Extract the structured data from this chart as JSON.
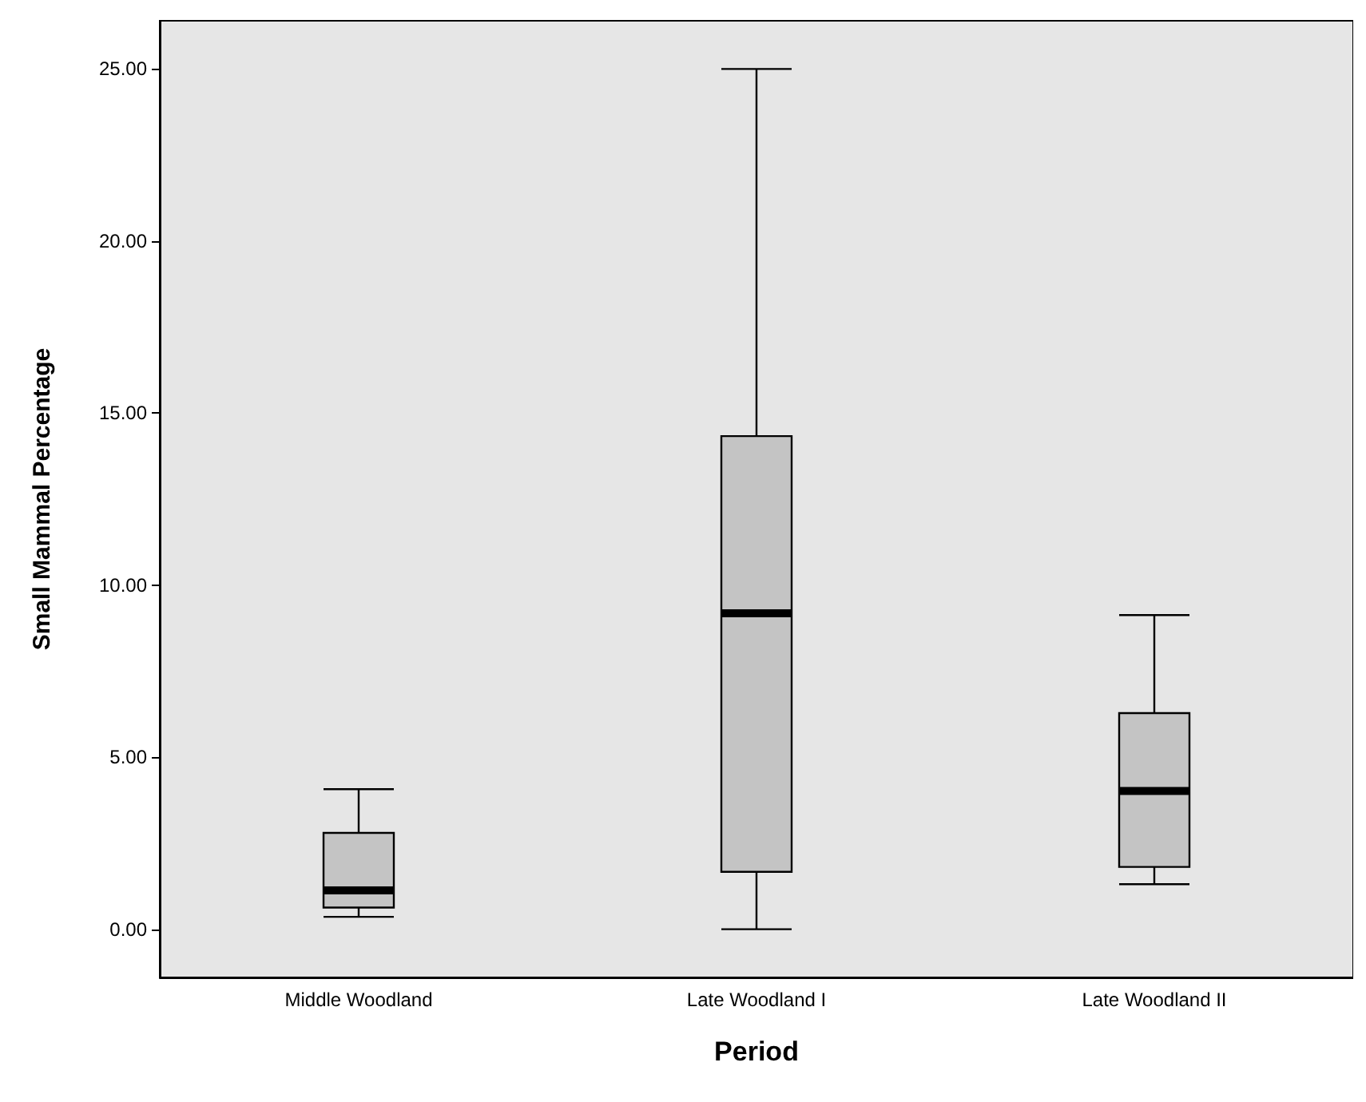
{
  "chart_data": {
    "type": "box",
    "xlabel": "Period",
    "ylabel": "Small Mammal Percentage",
    "categories": [
      "Middle Woodland",
      "Late Woodland I",
      "Late Woodland II"
    ],
    "boxes": [
      {
        "low": 0.36,
        "q1": 0.63,
        "median": 1.13,
        "q3": 2.8,
        "high": 4.07
      },
      {
        "low": 0,
        "q1": 1.67,
        "median": 9.18,
        "q3": 14.33,
        "high": 25
      },
      {
        "low": 1.31,
        "q1": 1.81,
        "median": 4.02,
        "q3": 6.28,
        "high": 9.13
      }
    ],
    "color": "#c4c4c4",
    "ylim": [
      -1.4,
      26.4
    ],
    "yticks": [
      {
        "value": 0,
        "label": "0.00"
      },
      {
        "value": 5,
        "label": "5.00"
      },
      {
        "value": 10,
        "label": "10.00"
      },
      {
        "value": 15,
        "label": "15.00"
      },
      {
        "value": 20,
        "label": "20.00"
      },
      {
        "value": 25,
        "label": "25.00"
      }
    ],
    "grid": false
  }
}
